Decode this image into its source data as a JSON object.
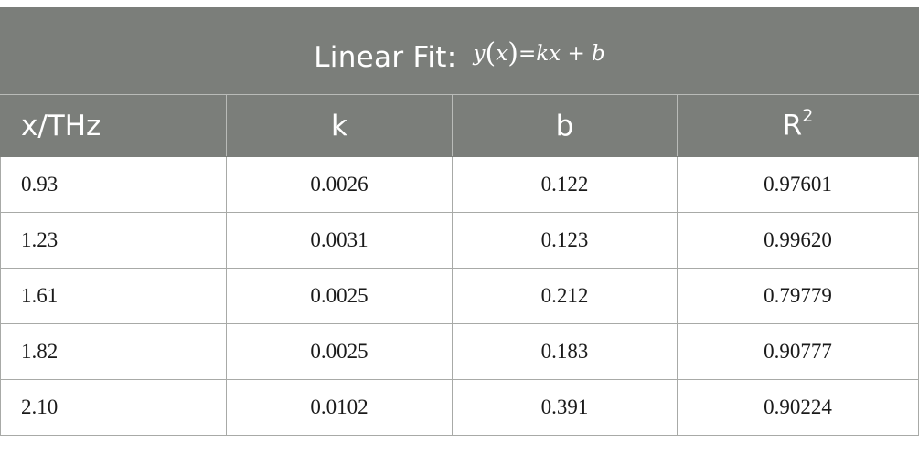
{
  "title": {
    "label": "Linear Fit:",
    "equation": {
      "lhs_var": "y",
      "lhs_arg": "x",
      "eq": "=",
      "term1": "kx",
      "plus": "+",
      "term2": "b"
    }
  },
  "columns": {
    "x": "x/THz",
    "k": "k",
    "b": "b",
    "r2_base": "R",
    "r2_sup": "2"
  },
  "rows": [
    {
      "x": "0.93",
      "k": "0.0026",
      "b": "0.122",
      "r2": "0.97601"
    },
    {
      "x": "1.23",
      "k": "0.0031",
      "b": "0.123",
      "r2": "0.99620"
    },
    {
      "x": "1.61",
      "k": "0.0025",
      "b": "0.212",
      "r2": "0.79779"
    },
    {
      "x": "1.82",
      "k": "0.0025",
      "b": "0.183",
      "r2": "0.90777"
    },
    {
      "x": "2.10",
      "k": "0.0102",
      "b": "0.391",
      "r2": "0.90224"
    }
  ],
  "colors": {
    "header_bg": "#7b7e7a",
    "header_text": "#ffffff",
    "grid": "#a8aaa7"
  }
}
